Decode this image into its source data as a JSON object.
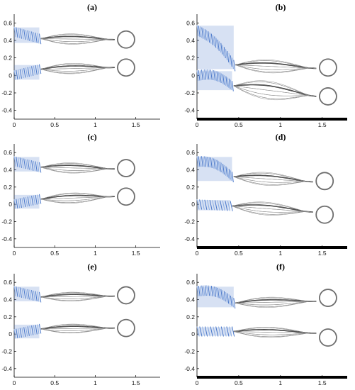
{
  "chart_data": [
    {
      "panel": "(a)",
      "type": "line",
      "xlim": [
        0,
        1.8
      ],
      "ylim": [
        -0.5,
        0.7
      ],
      "xticks": [
        "0",
        "0.5",
        "1",
        "1.5"
      ],
      "yticks": [
        "0.6",
        "0.4",
        "0.2",
        "0",
        "-0.2",
        "-0.4"
      ],
      "floor": false,
      "series": [
        {
          "root": [
            0.0,
            0.5
          ],
          "body_end": [
            0.31,
            0.42
          ],
          "body_shape": "straight",
          "hinge_x": 0.33,
          "tail_y": 0.41,
          "circle": [
            1.38,
            0.41
          ],
          "peak": 0.08
        },
        {
          "root": [
            0.0,
            0.0
          ],
          "body_end": [
            0.31,
            0.07
          ],
          "body_shape": "straight",
          "hinge_x": 0.33,
          "tail_y": 0.09,
          "circle": [
            1.38,
            0.09
          ],
          "peak": 0.08
        }
      ]
    },
    {
      "panel": "(b)",
      "type": "line",
      "xlim": [
        0,
        1.8
      ],
      "ylim": [
        -0.5,
        0.7
      ],
      "xticks": [
        "0",
        "0.5",
        "1",
        "1.5"
      ],
      "yticks": [
        "0.6",
        "0.4",
        "0.2",
        "0",
        "-0.2",
        "-0.4"
      ],
      "floor": true,
      "floor_y": -0.5,
      "series": [
        {
          "root": [
            0.0,
            0.52
          ],
          "body_end": [
            0.44,
            0.12
          ],
          "body_shape": "curved",
          "hinge_x": 0.46,
          "tail_y": 0.08,
          "circle": [
            1.57,
            0.09
          ],
          "peak": 0.1
        },
        {
          "root": [
            0.0,
            0.0
          ],
          "body_end": [
            0.42,
            -0.12
          ],
          "body_shape": "curved",
          "hinge_x": 0.44,
          "tail_y": -0.24,
          "circle": [
            1.57,
            -0.24
          ],
          "peak": 0.14
        }
      ]
    },
    {
      "panel": "(c)",
      "type": "line",
      "xlim": [
        0,
        1.8
      ],
      "ylim": [
        -0.5,
        0.7
      ],
      "xticks": [
        "0",
        "0.5",
        "1",
        "1.5"
      ],
      "yticks": [
        "0.6",
        "0.4",
        "0.2",
        "0",
        "-0.2",
        "-0.4"
      ],
      "floor": false,
      "series": [
        {
          "root": [
            0.0,
            0.5
          ],
          "body_end": [
            0.31,
            0.43
          ],
          "body_shape": "straight",
          "hinge_x": 0.33,
          "tail_y": 0.41,
          "circle": [
            1.38,
            0.42
          ],
          "peak": 0.08
        },
        {
          "root": [
            0.0,
            0.0
          ],
          "body_end": [
            0.31,
            0.06
          ],
          "body_shape": "straight",
          "hinge_x": 0.33,
          "tail_y": 0.09,
          "circle": [
            1.38,
            0.09
          ],
          "peak": 0.08
        }
      ]
    },
    {
      "panel": "(d)",
      "type": "line",
      "xlim": [
        0,
        1.8
      ],
      "ylim": [
        -0.5,
        0.7
      ],
      "xticks": [
        "0",
        "0.5",
        "1",
        "1.5"
      ],
      "yticks": [
        "0.6",
        "0.4",
        "0.2",
        "0",
        "-0.2",
        "-0.4"
      ],
      "floor": true,
      "floor_y": -0.5,
      "series": [
        {
          "root": [
            0.0,
            0.5
          ],
          "body_end": [
            0.42,
            0.32
          ],
          "body_shape": "curved",
          "hinge_x": 0.44,
          "tail_y": 0.26,
          "circle": [
            1.53,
            0.27
          ],
          "peak": 0.1
        },
        {
          "root": [
            0.0,
            0.0
          ],
          "body_end": [
            0.4,
            -0.02
          ],
          "body_shape": "straight",
          "hinge_x": 0.42,
          "tail_y": -0.09,
          "circle": [
            1.53,
            -0.12
          ],
          "peak": 0.1
        }
      ]
    },
    {
      "panel": "(e)",
      "type": "line",
      "xlim": [
        0,
        1.8
      ],
      "ylim": [
        -0.5,
        0.7
      ],
      "xticks": [
        "0",
        "0.5",
        "1",
        "1.5"
      ],
      "yticks": [
        "0.6",
        "0.4",
        "0.2",
        "0",
        "-0.2",
        "-0.4"
      ],
      "floor": false,
      "series": [
        {
          "root": [
            0.0,
            0.5
          ],
          "body_end": [
            0.31,
            0.43
          ],
          "body_shape": "straight",
          "hinge_x": 0.33,
          "tail_y": 0.44,
          "circle": [
            1.38,
            0.45
          ],
          "peak": 0.07
        },
        {
          "root": [
            0.0,
            0.0
          ],
          "body_end": [
            0.31,
            0.06
          ],
          "body_shape": "straight",
          "hinge_x": 0.33,
          "tail_y": 0.07,
          "circle": [
            1.38,
            0.07
          ],
          "peak": 0.07
        }
      ]
    },
    {
      "panel": "(f)",
      "type": "line",
      "xlim": [
        0,
        1.8
      ],
      "ylim": [
        -0.5,
        0.7
      ],
      "xticks": [
        "0",
        "0.5",
        "1",
        "1.5"
      ],
      "yticks": [
        "0.6",
        "0.4",
        "0.2",
        "0",
        "-0.2",
        "-0.4"
      ],
      "floor": true,
      "floor_y": -0.5,
      "series": [
        {
          "root": [
            0.0,
            0.5
          ],
          "body_end": [
            0.44,
            0.36
          ],
          "body_shape": "curved",
          "hinge_x": 0.46,
          "tail_y": 0.38,
          "circle": [
            1.57,
            0.42
          ],
          "peak": 0.08
        },
        {
          "root": [
            0.0,
            0.03
          ],
          "body_end": [
            0.42,
            0.03
          ],
          "body_shape": "straight",
          "hinge_x": 0.44,
          "tail_y": 0.01,
          "circle": [
            1.57,
            -0.04
          ],
          "peak": 0.08
        }
      ]
    }
  ],
  "colors": {
    "body": "#4a78c9",
    "body_light": "#9dbbe9",
    "filament": "#222222",
    "filament_light": "#8a8a8a",
    "circle": "#6e6e6e",
    "floor": "#000000",
    "axis": "#000000"
  }
}
